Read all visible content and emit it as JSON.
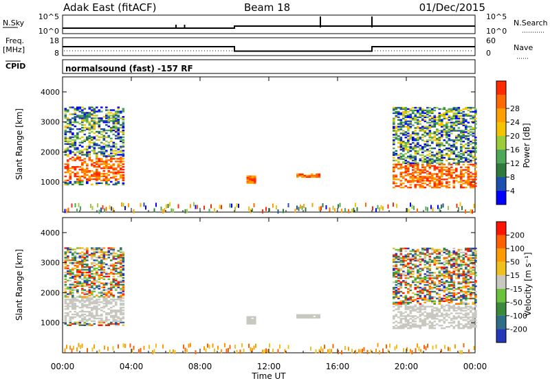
{
  "header": {
    "title": "Adak East (fitACF)",
    "beam": "Beam 18",
    "date": "01/Dec/2015"
  },
  "noise_panel": {
    "left_label": "N.Sky",
    "left_ticks": [
      "10^5",
      "10^0"
    ],
    "right_ticks": [
      "10^5",
      "10^0"
    ],
    "right_label": "N.Search"
  },
  "freq_panel": {
    "left_label_top": "Freq.",
    "left_label_bottom": "[MHz]",
    "left_ticks": [
      "18",
      "8"
    ],
    "right_ticks": [
      "60",
      "0"
    ],
    "right_label": "Nave"
  },
  "cpid": {
    "label": "CPID",
    "value": "normalsound (fast) -157 RF"
  },
  "x_axis": {
    "label": "Time UT",
    "ticks": [
      "00:00",
      "04:00",
      "08:00",
      "12:00",
      "16:00",
      "20:00",
      "00:00"
    ]
  },
  "colors": {
    "power_scale": [
      "#0000ff",
      "#1c4fb0",
      "#2f7a3d",
      "#4fa85a",
      "#9ccc3c",
      "#f5c400",
      "#ffa000",
      "#ff6a00",
      "#ff2a00"
    ],
    "velocity_scale": [
      "#2438b8",
      "#2e6f86",
      "#3a8a3a",
      "#6cc13c",
      "#c8c8c0",
      "#f0c020",
      "#ff9a00",
      "#ff6000",
      "#ff1400"
    ]
  },
  "chart_data": [
    {
      "type": "line",
      "name": "noise",
      "x_range_hours": [
        0,
        24
      ],
      "series": [
        {
          "values_hours": [
            0,
            10,
            10,
            24
          ],
          "levels": [
            "low",
            "low",
            "mid",
            "mid"
          ]
        }
      ],
      "spikes_hours": [
        6.6,
        7.1,
        15.0,
        18.0
      ]
    },
    {
      "type": "line",
      "name": "frequency",
      "x_range_hours": [
        0,
        24
      ],
      "series": [
        {
          "name": "Freq.",
          "x": [
            0,
            10,
            10,
            18,
            18,
            24
          ],
          "y": [
            13,
            13,
            10.5,
            10.5,
            13,
            13
          ]
        }
      ],
      "ylim": [
        8,
        18
      ]
    },
    {
      "type": "heatmap",
      "title": "Power",
      "ylabel": "Slant Range [km]",
      "colorbar_label": "Power [dB]",
      "colorbar_ticks": [
        4,
        8,
        12,
        16,
        20,
        24,
        28
      ],
      "ylim": [
        0,
        4500
      ],
      "y_ticks": [
        1000,
        2000,
        3000,
        4000
      ],
      "xlim_hours": [
        0,
        24
      ]
    },
    {
      "type": "heatmap",
      "title": "Velocity",
      "ylabel": "Slant Range [km]",
      "colorbar_label": "Velocity [m s⁻¹]",
      "colorbar_ticks": [
        200,
        100,
        50,
        15,
        -15,
        -50,
        -100,
        -200
      ],
      "ylim": [
        0,
        4500
      ],
      "y_ticks": [
        1000,
        2000,
        3000,
        4000
      ],
      "xlim_hours": [
        0,
        24
      ]
    }
  ]
}
